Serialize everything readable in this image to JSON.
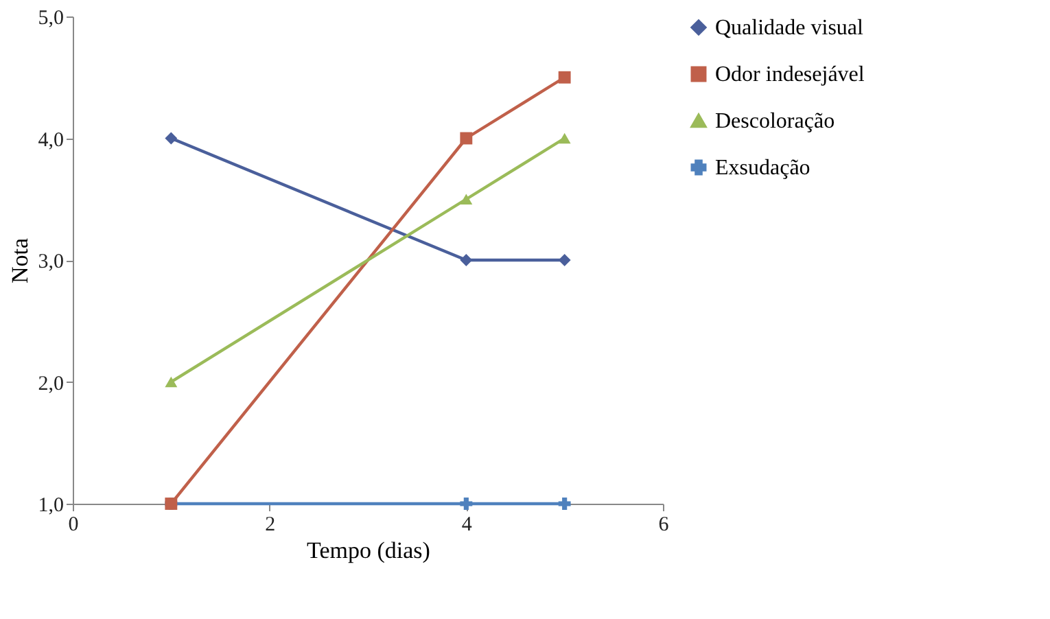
{
  "chart_data": {
    "type": "line",
    "xlabel": "Tempo (dias)",
    "ylabel": "Nota",
    "x": [
      1,
      4,
      5
    ],
    "series": [
      {
        "name": "Qualidade visual",
        "color": "#4a5f9b",
        "marker": "diamond",
        "values": [
          4,
          3,
          3
        ]
      },
      {
        "name": "Odor indesejável",
        "color": "#c0604a",
        "marker": "square",
        "values": [
          1,
          4,
          4.5
        ]
      },
      {
        "name": "Descoloração",
        "color": "#9bbb59",
        "marker": "triangle",
        "values": [
          2,
          3.5,
          4
        ]
      },
      {
        "name": "Exsudação",
        "color": "#4f81bd",
        "marker": "cross",
        "values": [
          1,
          1,
          1
        ]
      }
    ],
    "xlim": [
      0,
      6
    ],
    "xticks": [
      0,
      2,
      4,
      6
    ],
    "ylim": [
      1,
      5
    ],
    "yticks": [
      {
        "value": 1,
        "label": "1,0"
      },
      {
        "value": 2,
        "label": "2,0"
      },
      {
        "value": 3,
        "label": "3,0"
      },
      {
        "value": 4,
        "label": "4,0"
      },
      {
        "value": 5,
        "label": "5,0"
      }
    ],
    "grid": false,
    "legend": "right",
    "line_style": "solid"
  }
}
